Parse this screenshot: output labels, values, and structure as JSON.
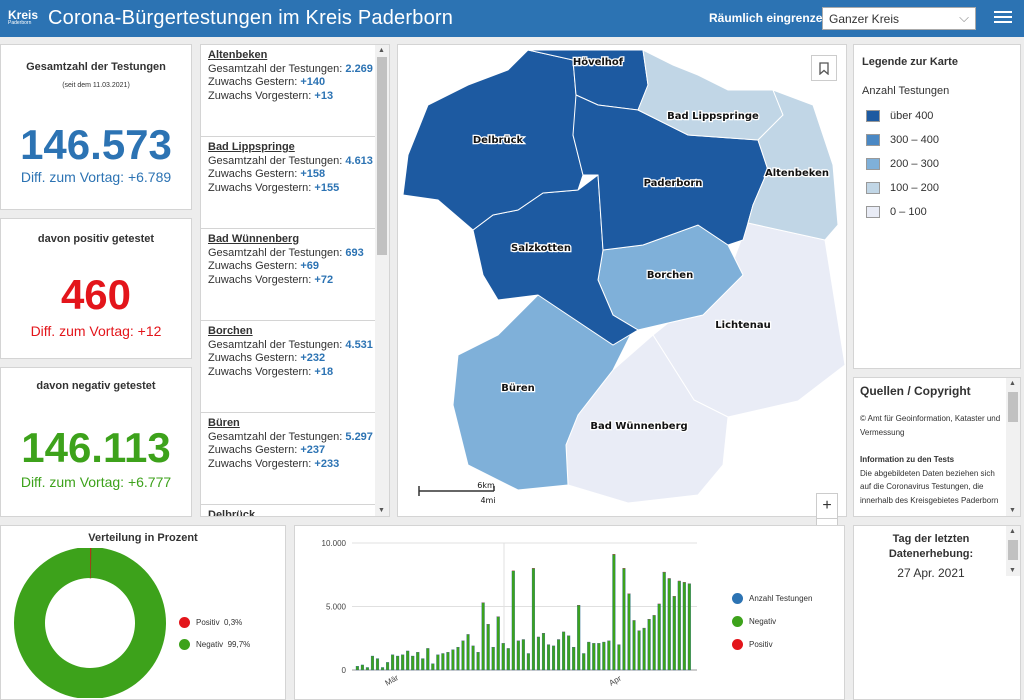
{
  "header": {
    "logo_mark": "Kreis",
    "logo_text": "Paderborn",
    "title": "Corona-Bürgertestungen im Kreis Paderborn",
    "filter_label": "Räumlich eingrenzen",
    "filter_value": "Ganzer Kreis"
  },
  "stats": [
    {
      "label": "Gesamtzahl der Testungen",
      "sub": "(seit dem 11.03.2021)",
      "value": "146.573",
      "diff": "Diff. zum Vortag: +6.789",
      "color": "#2c73b3"
    },
    {
      "label": "davon positiv getestet",
      "value": "460",
      "diff": "Diff. zum Vortag: +12",
      "color": "#e3151b"
    },
    {
      "label": "davon negativ getestet",
      "value": "146.113",
      "diff": "Diff. zum Vortag: +6.777",
      "color": "#3da21b"
    }
  ],
  "list": {
    "total_label": "Gesamtzahl der Testungen:",
    "yesterday_label": "Zuwachs Gestern:",
    "before_label": "Zuwachs Vorgestern:",
    "items": [
      {
        "name": "Altenbeken",
        "total": "2.269",
        "yesterday": "+140",
        "before": "+13"
      },
      {
        "name": "Bad Lippspringe",
        "total": "4.613",
        "yesterday": "+158",
        "before": "+155"
      },
      {
        "name": "Bad Wünnenberg",
        "total": "693",
        "yesterday": "+69",
        "before": "+72"
      },
      {
        "name": "Borchen",
        "total": "4.531",
        "yesterday": "+232",
        "before": "+18"
      },
      {
        "name": "Büren",
        "total": "5.297",
        "yesterday": "+237",
        "before": "+233"
      },
      {
        "name": "Delbrück",
        "total": "",
        "yesterday": "",
        "before": ""
      }
    ]
  },
  "map": {
    "labels": [
      "Hövelhof",
      "Bad Lippspringe",
      "Delbrück",
      "Altenbeken",
      "Paderborn",
      "Salzkotten",
      "Borchen",
      "Lichtenau",
      "Büren",
      "Bad Wünnenberg"
    ],
    "scale_km": "6km",
    "scale_mi": "4mi"
  },
  "legend": {
    "title": "Legende zur Karte",
    "subtitle": "Anzahl Testungen",
    "classes": [
      {
        "label": "über 400",
        "color": "#1d5aa1"
      },
      {
        "label": "300 – 400",
        "color": "#4a88c4"
      },
      {
        "label": "200 – 300",
        "color": "#7fb0d9"
      },
      {
        "label": "100 – 200",
        "color": "#c1d6e6"
      },
      {
        "label": "0 – 100",
        "color": "#e9ecf6"
      }
    ]
  },
  "quellen": {
    "title": "Quellen / Copyright",
    "line1": "© Amt für Geoinformation, Kataster und Vermessung",
    "info_title": "Information zu den Tests",
    "info_text": "Die abgebildeten Daten beziehen sich auf die Coronavirus Testungen, die innerhalb des Kreisgebietes Paderborn"
  },
  "tag": {
    "title": "Tag der letzten Datenerhebung:",
    "date": "27 Apr. 2021"
  },
  "donut": {
    "title": "Verteilung in Prozent",
    "legend": [
      {
        "label": "Positiv",
        "pct": "0,3%",
        "color": "#e3151b"
      },
      {
        "label": "Negativ",
        "pct": "99,7%",
        "color": "#3da21b"
      }
    ]
  },
  "bar_legend": [
    {
      "label": "Anzahl Testungen",
      "color": "#2c73b3"
    },
    {
      "label": "Negativ",
      "color": "#3da21b"
    },
    {
      "label": "Positiv",
      "color": "#e3151b"
    }
  ],
  "chart_data": [
    {
      "type": "pie",
      "title": "Verteilung in Prozent",
      "categories": [
        "Positiv",
        "Negativ"
      ],
      "values": [
        0.3,
        99.7
      ]
    },
    {
      "type": "bar",
      "x_tick_labels": [
        "Mär",
        "Apr"
      ],
      "y_tick_labels": [
        "0",
        "5.000",
        "10.000"
      ],
      "ylim": [
        0,
        10000
      ],
      "grid": true,
      "legend_position": "right",
      "series": [
        {
          "name": "Anzahl Testungen",
          "values": [
            300,
            400,
            200,
            1100,
            900,
            200,
            600,
            1200,
            1100,
            1200,
            1500,
            1100,
            1400,
            900,
            1700,
            500,
            1200,
            1300,
            1400,
            1600,
            1800,
            2300,
            2800,
            1900,
            1400,
            5300,
            3600,
            1800,
            4200,
            2100,
            1700,
            7800,
            2300,
            2400,
            1300,
            8000,
            2600,
            2900,
            2000,
            1900,
            2400,
            3000,
            2700,
            1800,
            5100,
            1300,
            2200,
            2100,
            2100,
            2200,
            2300,
            9100,
            2000,
            8000,
            6000,
            3900,
            3100,
            3300,
            4000,
            4300,
            5200,
            7700,
            7200,
            5800,
            7000,
            6900,
            6800
          ]
        },
        {
          "name": "Negativ",
          "values": [
            300,
            400,
            200,
            1100,
            900,
            200,
            600,
            1200,
            1100,
            1200,
            1500,
            1100,
            1400,
            900,
            1700,
            500,
            1200,
            1300,
            1400,
            1600,
            1800,
            2300,
            2800,
            1900,
            1400,
            5300,
            3600,
            1800,
            4200,
            2100,
            1700,
            7800,
            2300,
            2400,
            1300,
            8000,
            2600,
            2900,
            2000,
            1900,
            2400,
            3000,
            2700,
            1800,
            5100,
            1300,
            2200,
            2100,
            2100,
            2200,
            2300,
            9100,
            2000,
            8000,
            6000,
            3900,
            3100,
            3300,
            4000,
            4300,
            5200,
            7700,
            7200,
            5800,
            7000,
            6900,
            6800
          ]
        },
        {
          "name": "Positiv",
          "values": [
            0,
            0,
            0,
            3,
            3,
            0,
            2,
            4,
            4,
            4,
            5,
            4,
            5,
            3,
            6,
            2,
            4,
            4,
            5,
            5,
            6,
            8,
            9,
            6,
            5,
            17,
            12,
            6,
            14,
            7,
            6,
            25,
            8,
            8,
            4,
            26,
            9,
            10,
            7,
            6,
            8,
            10,
            9,
            6,
            17,
            4,
            7,
            7,
            7,
            7,
            8,
            30,
            7,
            26,
            20,
            13,
            10,
            11,
            13,
            14,
            17,
            25,
            24,
            19,
            23,
            22,
            12
          ]
        }
      ]
    }
  ]
}
